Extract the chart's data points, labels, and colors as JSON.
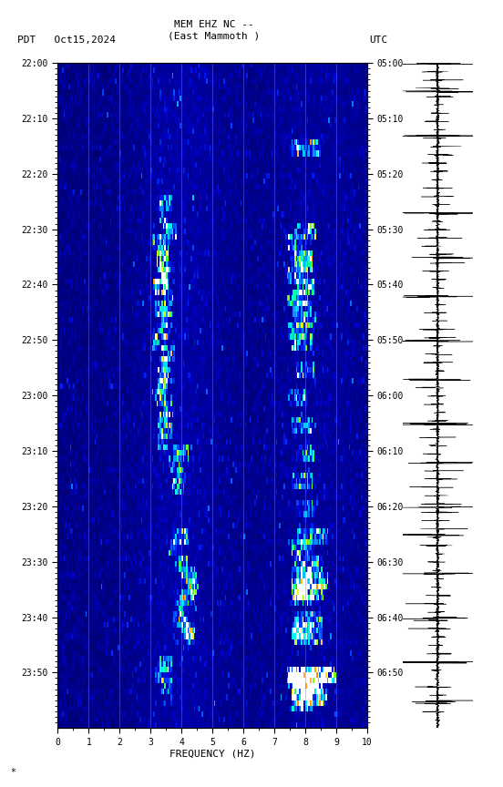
{
  "title_line1": "MEM EHZ NC --",
  "title_line2": "(East Mammoth )",
  "label_left": "PDT   Oct15,2024",
  "label_right": "UTC",
  "ylabel_left_ticks": [
    "22:00",
    "22:10",
    "22:20",
    "22:30",
    "22:40",
    "22:50",
    "23:00",
    "23:10",
    "23:20",
    "23:30",
    "23:40",
    "23:50"
  ],
  "ylabel_right_ticks": [
    "05:00",
    "05:10",
    "05:20",
    "05:30",
    "05:40",
    "05:50",
    "06:00",
    "06:10",
    "06:20",
    "06:30",
    "06:40",
    "06:50"
  ],
  "xlabel": "FREQUENCY (HZ)",
  "xmin": 0,
  "xmax": 10,
  "freq_ticks": [
    0,
    1,
    2,
    3,
    4,
    5,
    6,
    7,
    8,
    9,
    10
  ],
  "fig_bg": "#ffffff",
  "footnote": "*",
  "num_time_steps": 120,
  "num_freq_bins": 200,
  "cmap_nodes": [
    [
      0.0,
      "#000066"
    ],
    [
      0.1,
      "#000099"
    ],
    [
      0.2,
      "#0000CC"
    ],
    [
      0.3,
      "#0033FF"
    ],
    [
      0.4,
      "#0088FF"
    ],
    [
      0.5,
      "#00CCFF"
    ],
    [
      0.6,
      "#00FFEE"
    ],
    [
      0.7,
      "#00FF88"
    ],
    [
      0.8,
      "#88FF00"
    ],
    [
      0.88,
      "#FFFF00"
    ],
    [
      0.94,
      "#FF8800"
    ],
    [
      1.0,
      "#FFFFFF"
    ]
  ]
}
